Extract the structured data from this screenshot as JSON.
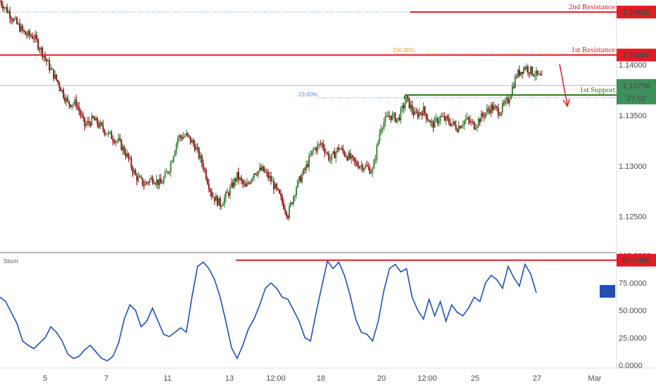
{
  "chart_data": [
    {
      "type": "candlestick",
      "title": "",
      "ylim": [
        1.1215,
        1.1464
      ],
      "y_ticks": [
        "1.14000",
        "1.13500",
        "1.13000",
        "1.12500"
      ],
      "x_tick_labels": [
        "5",
        "7",
        "11",
        "13",
        "12:00",
        "18",
        "20",
        "12:00",
        "25",
        "27",
        "Mar"
      ],
      "price_path": [
        [
          0,
          1.1463
        ],
        [
          6,
          1.1452
        ],
        [
          12,
          1.144
        ],
        [
          18,
          1.143
        ],
        [
          24,
          1.1428
        ],
        [
          30,
          1.1412
        ],
        [
          36,
          1.1395
        ],
        [
          42,
          1.138
        ],
        [
          48,
          1.1362
        ],
        [
          54,
          1.1362
        ],
        [
          60,
          1.134
        ],
        [
          66,
          1.1346
        ],
        [
          72,
          1.1338
        ],
        [
          78,
          1.133
        ],
        [
          84,
          1.1324
        ],
        [
          90,
          1.131
        ],
        [
          96,
          1.129
        ],
        [
          102,
          1.1282
        ],
        [
          108,
          1.1288
        ],
        [
          114,
          1.1282
        ],
        [
          120,
          1.1298
        ],
        [
          126,
          1.1328
        ],
        [
          132,
          1.133
        ],
        [
          138,
          1.132
        ],
        [
          144,
          1.13
        ],
        [
          150,
          1.1272
        ],
        [
          156,
          1.1262
        ],
        [
          162,
          1.1274
        ],
        [
          168,
          1.129
        ],
        [
          174,
          1.1278
        ],
        [
          180,
          1.1294
        ],
        [
          186,
          1.1296
        ],
        [
          192,
          1.1286
        ],
        [
          198,
          1.127
        ],
        [
          204,
          1.1252
        ],
        [
          210,
          1.128
        ],
        [
          216,
          1.1296
        ],
        [
          222,
          1.1316
        ],
        [
          228,
          1.1322
        ],
        [
          234,
          1.1306
        ],
        [
          240,
          1.1318
        ],
        [
          246,
          1.131
        ],
        [
          252,
          1.1302
        ],
        [
          258,
          1.13
        ],
        [
          264,
          1.1295
        ],
        [
          270,
          1.134
        ],
        [
          276,
          1.135
        ],
        [
          282,
          1.1346
        ],
        [
          288,
          1.1366
        ],
        [
          294,
          1.135
        ],
        [
          300,
          1.1355
        ],
        [
          306,
          1.134
        ],
        [
          312,
          1.1348
        ],
        [
          318,
          1.1344
        ],
        [
          324,
          1.1338
        ],
        [
          330,
          1.1346
        ],
        [
          336,
          1.134
        ],
        [
          342,
          1.135
        ],
        [
          348,
          1.1358
        ],
        [
          354,
          1.1354
        ],
        [
          360,
          1.1365
        ],
        [
          366,
          1.139
        ],
        [
          372,
          1.1398
        ],
        [
          378,
          1.1392
        ],
        [
          384,
          1.1386
        ]
      ],
      "levels": [
        {
          "label": "2nd Resistance",
          "value": "1.14521",
          "price": 1.14521,
          "color": "#e31b23"
        },
        {
          "label": "1st Resistance",
          "value": "1.14096",
          "price": 1.14096,
          "color": "#e31b23"
        },
        {
          "label": "1st Support",
          "value": "1.13701",
          "price": 1.13701,
          "color": "#2e7d1a"
        }
      ],
      "current_price": {
        "value": "1.13796",
        "price": 1.13796,
        "countdown": "27:52",
        "color": "#3d8f5c"
      },
      "fib_labels": [
        {
          "text": "100.00%",
          "price": 1.14096
        },
        {
          "text": "23.60%",
          "price": 1.13701
        }
      ],
      "up_color": "#2e7d32",
      "down_color": "#8b0000"
    },
    {
      "type": "line",
      "title": "Stoch",
      "ylim": [
        -2,
        102
      ],
      "y_ticks": [
        "100.0000",
        "75.0000",
        "50.0000",
        "25.0000",
        "0.0000"
      ],
      "series": [
        {
          "name": "%D",
          "color": "#1e4fc2",
          "values": [
            [
              0,
              62
            ],
            [
              4,
              58
            ],
            [
              8,
              48
            ],
            [
              12,
              38
            ],
            [
              16,
              22
            ],
            [
              20,
              18
            ],
            [
              24,
              15
            ],
            [
              28,
              20
            ],
            [
              32,
              25
            ],
            [
              36,
              35
            ],
            [
              40,
              30
            ],
            [
              44,
              22
            ],
            [
              48,
              10
            ],
            [
              52,
              6
            ],
            [
              56,
              8
            ],
            [
              60,
              14
            ],
            [
              64,
              18
            ],
            [
              68,
              12
            ],
            [
              72,
              6
            ],
            [
              76,
              4
            ],
            [
              80,
              8
            ],
            [
              84,
              20
            ],
            [
              88,
              42
            ],
            [
              92,
              55
            ],
            [
              96,
              50
            ],
            [
              100,
              35
            ],
            [
              104,
              40
            ],
            [
              108,
              52
            ],
            [
              112,
              40
            ],
            [
              116,
              28
            ],
            [
              120,
              26
            ],
            [
              124,
              30
            ],
            [
              128,
              34
            ],
            [
              132,
              30
            ],
            [
              136,
              62
            ],
            [
              140,
              90
            ],
            [
              144,
              94
            ],
            [
              148,
              88
            ],
            [
              152,
              78
            ],
            [
              156,
              62
            ],
            [
              160,
              40
            ],
            [
              164,
              16
            ],
            [
              168,
              6
            ],
            [
              172,
              18
            ],
            [
              176,
              33
            ],
            [
              180,
              42
            ],
            [
              184,
              55
            ],
            [
              188,
              70
            ],
            [
              192,
              75
            ],
            [
              196,
              70
            ],
            [
              200,
              62
            ],
            [
              204,
              60
            ],
            [
              208,
              50
            ],
            [
              212,
              40
            ],
            [
              216,
              25
            ],
            [
              220,
              22
            ],
            [
              224,
              48
            ],
            [
              228,
              72
            ],
            [
              232,
              95
            ],
            [
              236,
              88
            ],
            [
              240,
              94
            ],
            [
              244,
              82
            ],
            [
              248,
              64
            ],
            [
              252,
              42
            ],
            [
              256,
              30
            ],
            [
              260,
              28
            ],
            [
              264,
              22
            ],
            [
              268,
              40
            ],
            [
              272,
              68
            ],
            [
              276,
              88
            ],
            [
              280,
              92
            ],
            [
              284,
              85
            ],
            [
              288,
              88
            ],
            [
              292,
              62
            ],
            [
              296,
              50
            ],
            [
              300,
              42
            ],
            [
              304,
              60
            ],
            [
              308,
              45
            ],
            [
              312,
              58
            ],
            [
              316,
              40
            ],
            [
              320,
              55
            ],
            [
              324,
              48
            ],
            [
              328,
              45
            ],
            [
              332,
              52
            ],
            [
              336,
              62
            ],
            [
              340,
              58
            ],
            [
              344,
              75
            ],
            [
              348,
              82
            ],
            [
              352,
              78
            ],
            [
              356,
              70
            ],
            [
              360,
              90
            ],
            [
              364,
              80
            ],
            [
              368,
              72
            ],
            [
              372,
              92
            ],
            [
              376,
              83
            ],
            [
              380,
              66
            ]
          ]
        }
      ],
      "marker_value": "95.7485",
      "marker": 95.7485,
      "marker_color": "#e31b23",
      "series_badge": "%D"
    }
  ]
}
